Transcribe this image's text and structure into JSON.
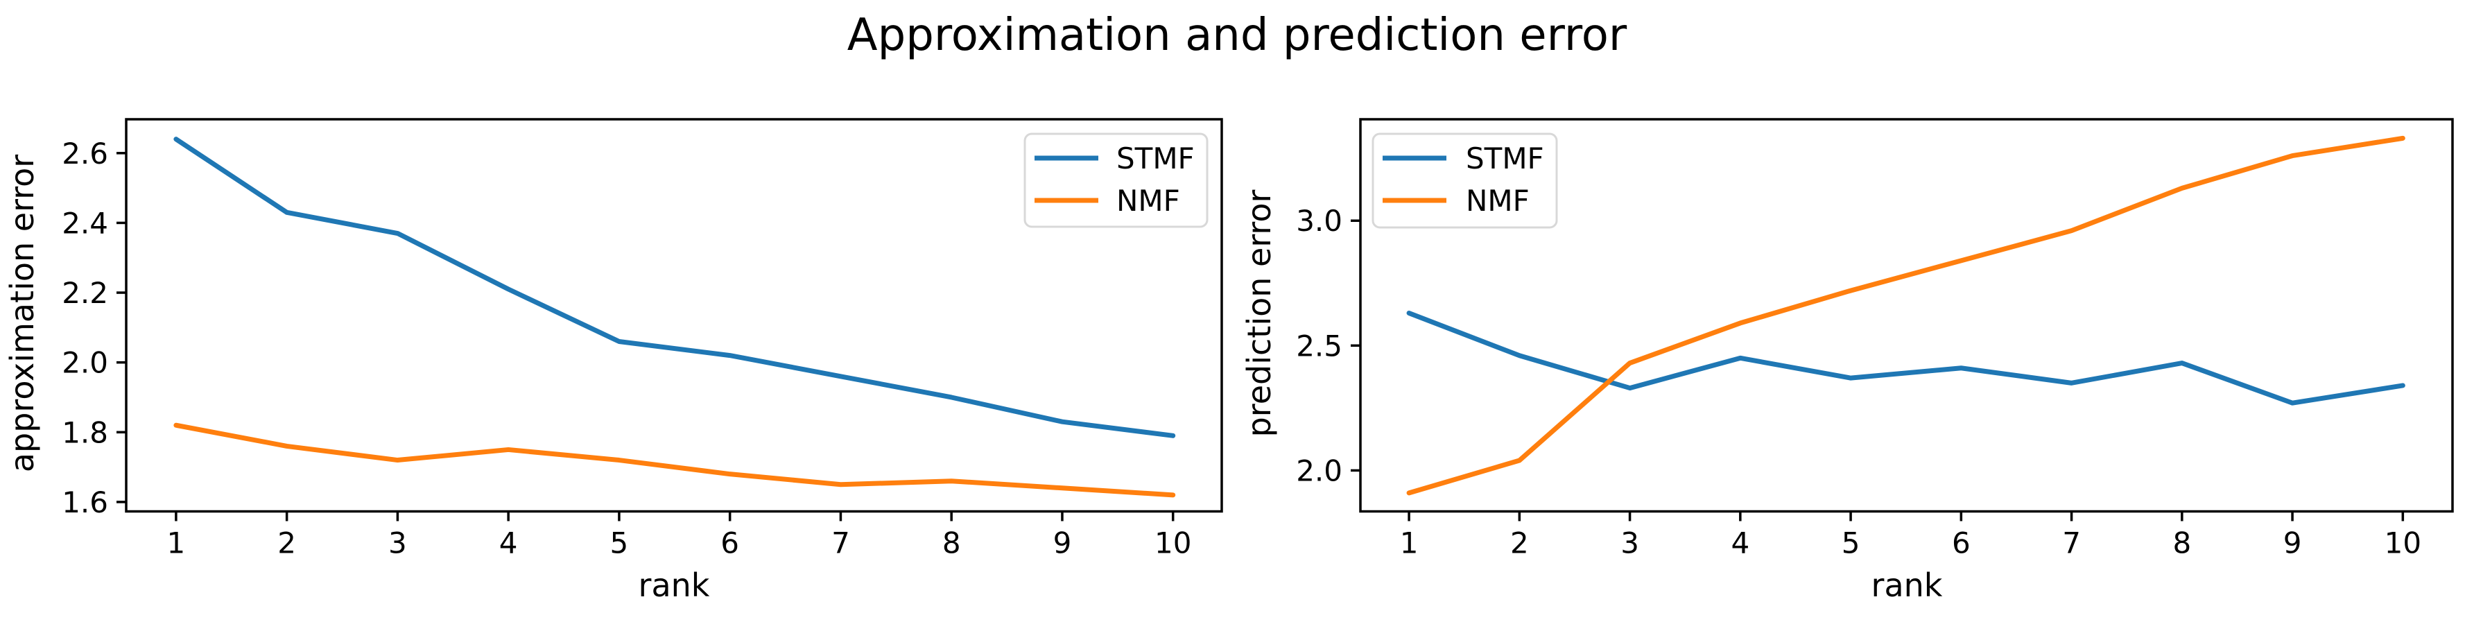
{
  "figure": {
    "title": "Approximation and prediction error",
    "background": "#ffffff",
    "spine_color": "#000000",
    "text_color": "#000000"
  },
  "legend": {
    "entries": [
      "STMF",
      "NMF"
    ]
  },
  "chart_data": [
    {
      "type": "line",
      "title": "Approximation and prediction error",
      "xlabel": "rank",
      "ylabel": "approximation error",
      "x": [
        1,
        2,
        3,
        4,
        5,
        6,
        7,
        8,
        9,
        10
      ],
      "xtick_labels": [
        "1",
        "2",
        "3",
        "4",
        "5",
        "6",
        "7",
        "8",
        "9",
        "10"
      ],
      "ytick_values": [
        1.6,
        1.8,
        2.0,
        2.2,
        2.4,
        2.6
      ],
      "ytick_labels": [
        "1.6",
        "1.8",
        "2.0",
        "2.2",
        "2.4",
        "2.6"
      ],
      "xlim": [
        0.55,
        10.44
      ],
      "ylim": [
        1.573,
        2.697
      ],
      "grid": false,
      "legend_position": "upper-right",
      "series": [
        {
          "name": "STMF",
          "color": "#1f77b4",
          "values": [
            2.64,
            2.43,
            2.37,
            2.21,
            2.06,
            2.02,
            1.96,
            1.9,
            1.83,
            1.79
          ]
        },
        {
          "name": "NMF",
          "color": "#ff7f0e",
          "values": [
            1.82,
            1.76,
            1.72,
            1.75,
            1.72,
            1.68,
            1.65,
            1.66,
            1.64,
            1.62
          ]
        }
      ]
    },
    {
      "type": "line",
      "title": "Approximation and prediction error",
      "xlabel": "rank",
      "ylabel": "prediction error",
      "x": [
        1,
        2,
        3,
        4,
        5,
        6,
        7,
        8,
        9,
        10
      ],
      "xtick_labels": [
        "1",
        "2",
        "3",
        "4",
        "5",
        "6",
        "7",
        "8",
        "9",
        "10"
      ],
      "ytick_values": [
        2.0,
        2.5,
        3.0
      ],
      "ytick_labels": [
        "2.0",
        "2.5",
        "3.0"
      ],
      "xlim": [
        0.56,
        10.45
      ],
      "ylim": [
        1.836,
        3.406
      ],
      "grid": false,
      "legend_position": "upper-left",
      "series": [
        {
          "name": "STMF",
          "color": "#1f77b4",
          "values": [
            2.63,
            2.46,
            2.33,
            2.45,
            2.37,
            2.41,
            2.35,
            2.43,
            2.27,
            2.34
          ]
        },
        {
          "name": "NMF",
          "color": "#ff7f0e",
          "values": [
            1.91,
            2.04,
            2.43,
            2.59,
            2.72,
            2.84,
            2.96,
            3.13,
            3.26,
            3.33
          ]
        }
      ]
    }
  ]
}
